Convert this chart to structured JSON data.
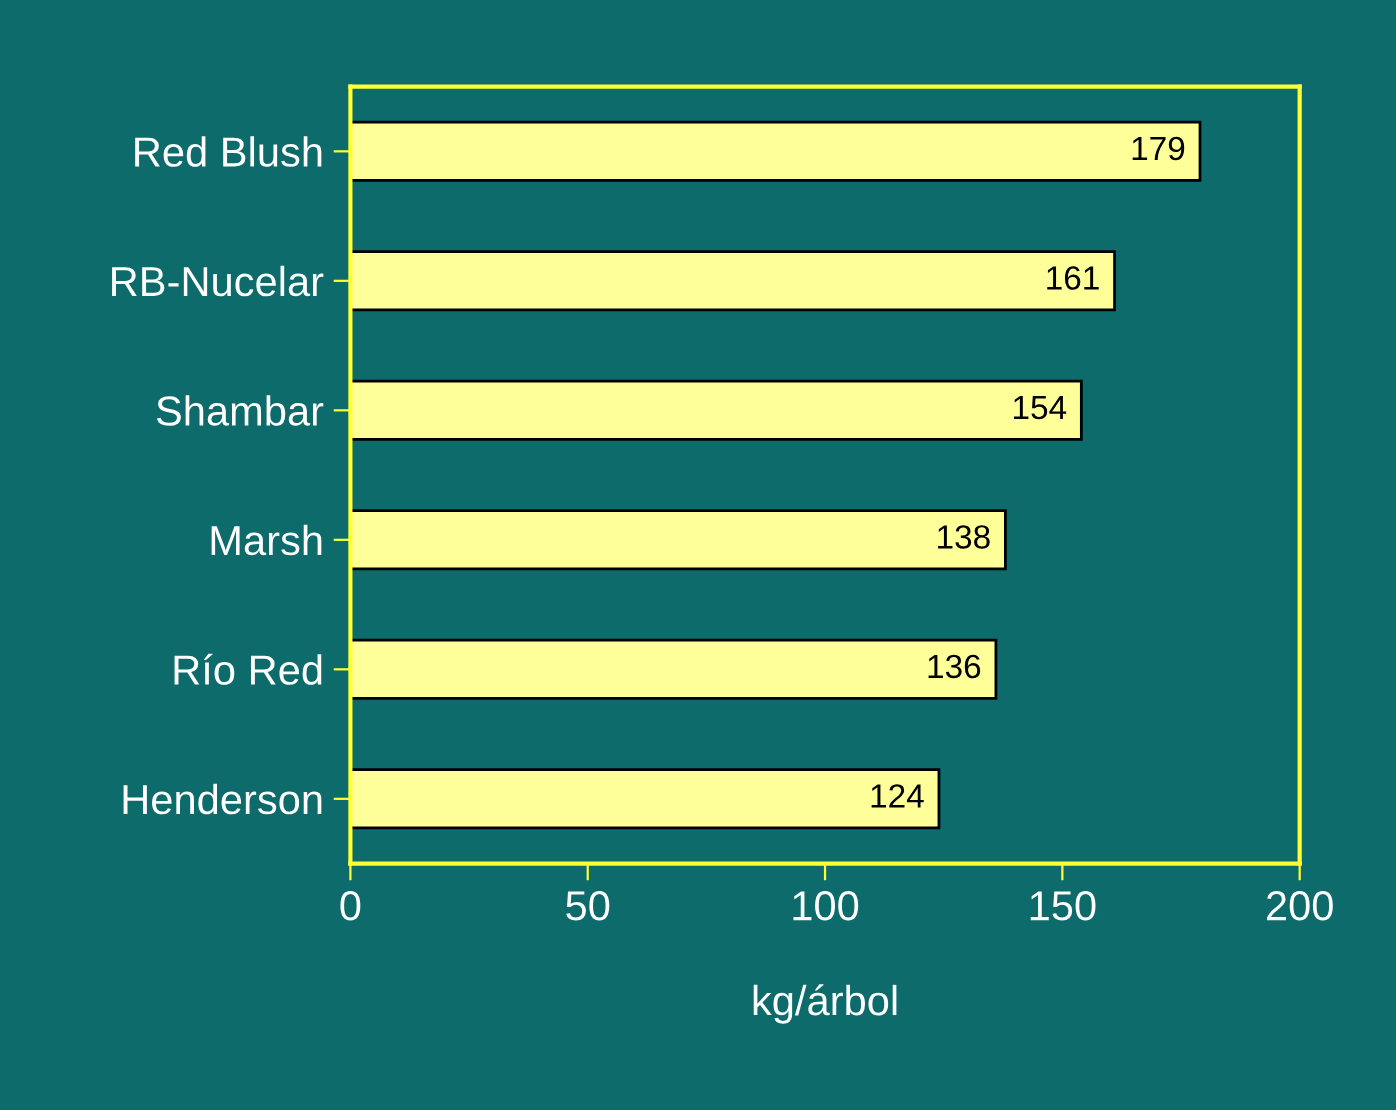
{
  "chart_data": {
    "type": "bar",
    "orientation": "horizontal",
    "categories": [
      "Red Blush",
      "RB-Nucelar",
      "Shambar",
      "Marsh",
      "Río Red",
      "Henderson"
    ],
    "values": [
      179,
      161,
      154,
      138,
      136,
      124
    ],
    "color": "#ffff99",
    "data_labels": true,
    "xlabel": "kg/árbol",
    "xlim": [
      0,
      200
    ],
    "xticks": [
      0,
      50,
      100,
      150,
      200
    ],
    "grid": false,
    "legend": false
  }
}
